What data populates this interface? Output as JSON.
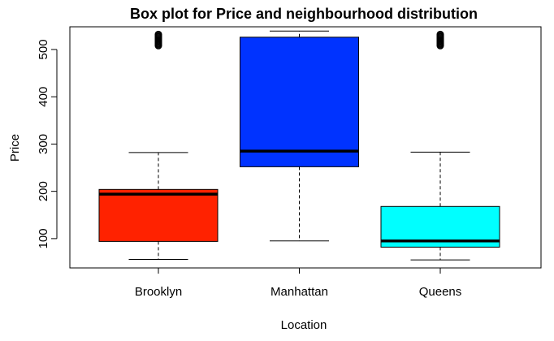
{
  "chart_data": {
    "type": "box",
    "title": "Box plot for Price and neighbourhood distribution",
    "xlabel": "Location",
    "ylabel": "Price",
    "ylim": [
      38,
      548
    ],
    "y_ticks": [
      100,
      200,
      300,
      400,
      500
    ],
    "categories": [
      "Brooklyn",
      "Manhattan",
      "Queens"
    ],
    "boxes": [
      {
        "category": "Brooklyn",
        "color": "#ff2200",
        "whisker_low": 56,
        "q1": 94,
        "median": 194,
        "q3": 204,
        "whisker_high": 282,
        "outliers_range": [
          508,
          532
        ]
      },
      {
        "category": "Manhattan",
        "color": "#0033ff",
        "whisker_low": 95,
        "q1": 252,
        "median": 285,
        "q3": 526,
        "whisker_high": 539,
        "outliers_range": []
      },
      {
        "category": "Queens",
        "color": "#00ffff",
        "whisker_low": 55,
        "q1": 82,
        "median": 95,
        "q3": 168,
        "whisker_high": 283,
        "outliers_range": [
          508,
          532
        ]
      }
    ],
    "grid": false,
    "legend": "none"
  }
}
